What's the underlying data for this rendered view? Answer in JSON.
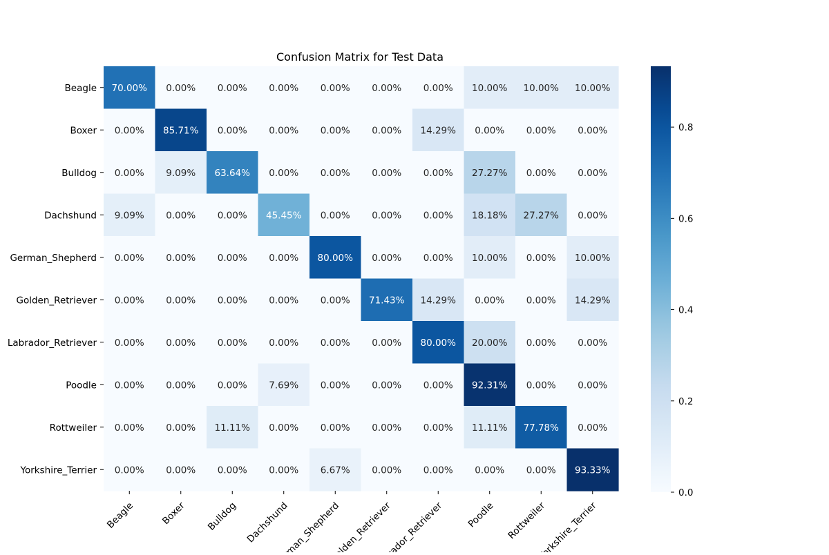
{
  "chart_data": {
    "type": "heatmap",
    "title": "Confusion Matrix for Test Data",
    "xlabel": "",
    "ylabel": "",
    "x_categories": [
      "Beagle",
      "Boxer",
      "Bulldog",
      "Dachshund",
      "German_Shepherd",
      "Golden_Retriever",
      "Labrador_Retriever",
      "Poodle",
      "Rottweiler",
      "Yorkshire_Terrier"
    ],
    "y_categories": [
      "Beagle",
      "Boxer",
      "Bulldog",
      "Dachshund",
      "German_Shepherd",
      "Golden_Retriever",
      "Labrador_Retriever",
      "Poodle",
      "Rottweiler",
      "Yorkshire_Terrier"
    ],
    "values": [
      [
        0.7,
        0.0,
        0.0,
        0.0,
        0.0,
        0.0,
        0.0,
        0.1,
        0.1,
        0.1
      ],
      [
        0.0,
        0.8571,
        0.0,
        0.0,
        0.0,
        0.0,
        0.1429,
        0.0,
        0.0,
        0.0
      ],
      [
        0.0,
        0.0909,
        0.6364,
        0.0,
        0.0,
        0.0,
        0.0,
        0.2727,
        0.0,
        0.0
      ],
      [
        0.0909,
        0.0,
        0.0,
        0.4545,
        0.0,
        0.0,
        0.0,
        0.1818,
        0.2727,
        0.0
      ],
      [
        0.0,
        0.0,
        0.0,
        0.0,
        0.8,
        0.0,
        0.0,
        0.1,
        0.0,
        0.1
      ],
      [
        0.0,
        0.0,
        0.0,
        0.0,
        0.0,
        0.7143,
        0.1429,
        0.0,
        0.0,
        0.1429
      ],
      [
        0.0,
        0.0,
        0.0,
        0.0,
        0.0,
        0.0,
        0.8,
        0.2,
        0.0,
        0.0
      ],
      [
        0.0,
        0.0,
        0.0,
        0.0769,
        0.0,
        0.0,
        0.0,
        0.9231,
        0.0,
        0.0
      ],
      [
        0.0,
        0.0,
        0.1111,
        0.0,
        0.0,
        0.0,
        0.0,
        0.1111,
        0.7778,
        0.0
      ],
      [
        0.0,
        0.0,
        0.0,
        0.0,
        0.0667,
        0.0,
        0.0,
        0.0,
        0.0,
        0.9333
      ]
    ],
    "value_format": "percent_2dp",
    "colormap": "Blues",
    "color_range": [
      0,
      0.9333
    ],
    "colorbar_ticks": [
      "0.0",
      "0.2",
      "0.4",
      "0.6",
      "0.8"
    ],
    "colorbar_tick_values": [
      0,
      0.2,
      0.4,
      0.6,
      0.8
    ],
    "x_tick_rotation_deg": 45,
    "grid": false,
    "colorbar_position": "right"
  }
}
